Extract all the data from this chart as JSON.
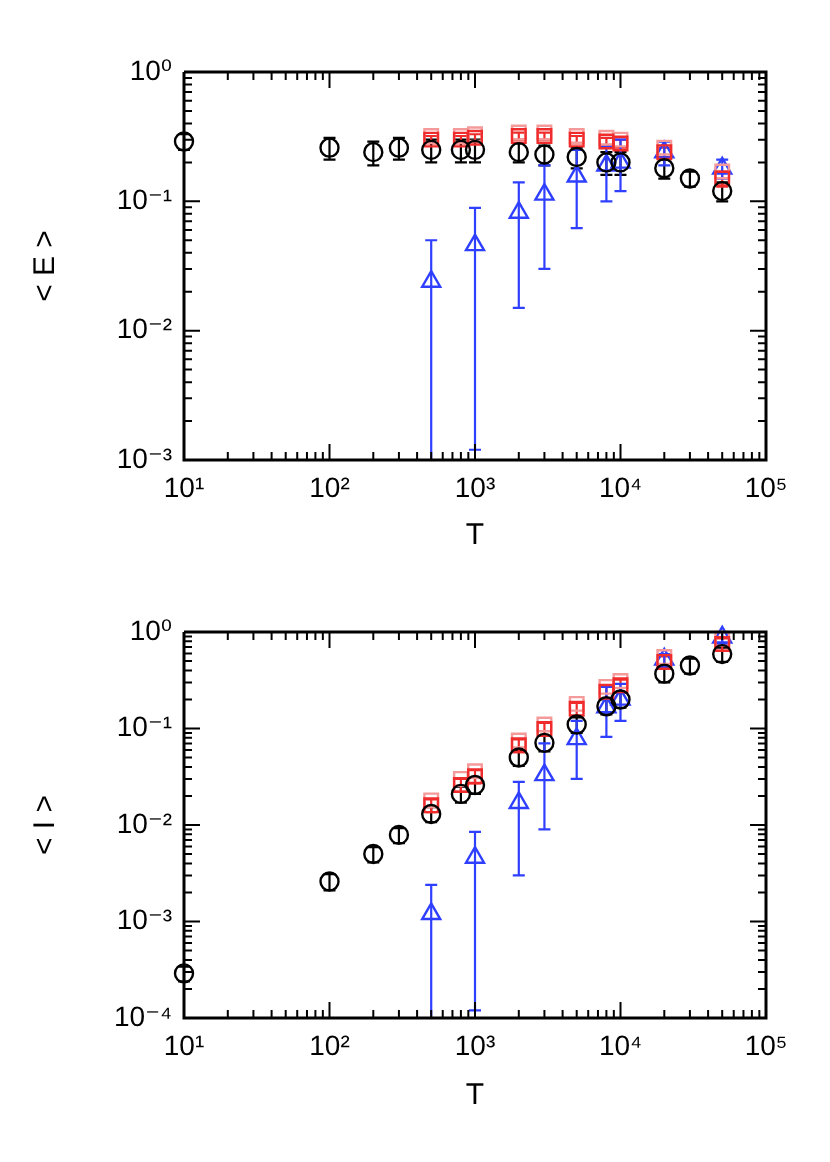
{
  "chart_data": [
    {
      "type": "scatter",
      "xlabel": "T",
      "ylabel": "< E >",
      "log": "xy",
      "grid": false,
      "legend": false,
      "xlim": [
        10,
        100000
      ],
      "ylim": [
        0.001,
        1
      ],
      "xticks": [
        {
          "value": 10,
          "label": "10¹"
        },
        {
          "value": 20,
          "label": null
        },
        {
          "value": 30,
          "label": null
        },
        {
          "value": 40,
          "label": null
        },
        {
          "value": 50,
          "label": null
        },
        {
          "value": 60,
          "label": null
        },
        {
          "value": 70,
          "label": null
        },
        {
          "value": 80,
          "label": null
        },
        {
          "value": 90,
          "label": null
        },
        {
          "value": 100,
          "label": "10²"
        },
        {
          "value": 200,
          "label": null
        },
        {
          "value": 300,
          "label": null
        },
        {
          "value": 400,
          "label": null
        },
        {
          "value": 500,
          "label": null
        },
        {
          "value": 600,
          "label": null
        },
        {
          "value": 700,
          "label": null
        },
        {
          "value": 800,
          "label": null
        },
        {
          "value": 900,
          "label": null
        },
        {
          "value": 1000,
          "label": "10³"
        },
        {
          "value": 2000,
          "label": null
        },
        {
          "value": 3000,
          "label": null
        },
        {
          "value": 4000,
          "label": null
        },
        {
          "value": 5000,
          "label": null
        },
        {
          "value": 6000,
          "label": null
        },
        {
          "value": 7000,
          "label": null
        },
        {
          "value": 8000,
          "label": null
        },
        {
          "value": 9000,
          "label": null
        },
        {
          "value": 10000,
          "label": "10⁴"
        },
        {
          "value": 20000,
          "label": null
        },
        {
          "value": 30000,
          "label": null
        },
        {
          "value": 40000,
          "label": null
        },
        {
          "value": 50000,
          "label": null
        },
        {
          "value": 60000,
          "label": null
        },
        {
          "value": 70000,
          "label": null
        },
        {
          "value": 80000,
          "label": null
        },
        {
          "value": 90000,
          "label": null
        },
        {
          "value": 100000,
          "label": "10⁵"
        }
      ],
      "yticks": [
        {
          "value": 0.001,
          "label": "10⁻³"
        },
        {
          "value": 0.002,
          "label": null
        },
        {
          "value": 0.003,
          "label": null
        },
        {
          "value": 0.004,
          "label": null
        },
        {
          "value": 0.005,
          "label": null
        },
        {
          "value": 0.006,
          "label": null
        },
        {
          "value": 0.007,
          "label": null
        },
        {
          "value": 0.008,
          "label": null
        },
        {
          "value": 0.009,
          "label": null
        },
        {
          "value": 0.01,
          "label": "10⁻²"
        },
        {
          "value": 0.02,
          "label": null
        },
        {
          "value": 0.03,
          "label": null
        },
        {
          "value": 0.04,
          "label": null
        },
        {
          "value": 0.05,
          "label": null
        },
        {
          "value": 0.06,
          "label": null
        },
        {
          "value": 0.07,
          "label": null
        },
        {
          "value": 0.08,
          "label": null
        },
        {
          "value": 0.09,
          "label": null
        },
        {
          "value": 0.1,
          "label": "10⁻¹"
        },
        {
          "value": 0.2,
          "label": null
        },
        {
          "value": 0.3,
          "label": null
        },
        {
          "value": 0.4,
          "label": null
        },
        {
          "value": 0.5,
          "label": null
        },
        {
          "value": 0.6,
          "label": null
        },
        {
          "value": 0.7,
          "label": null
        },
        {
          "value": 0.8,
          "label": null
        },
        {
          "value": 0.9,
          "label": null
        },
        {
          "value": 1,
          "label": "10⁰"
        }
      ],
      "series": [
        {
          "color": "#000000",
          "marker": "circle",
          "x": [
            10,
            100,
            200,
            300,
            500,
            800,
            1000,
            2000,
            3000,
            5000,
            8000,
            10000,
            20000,
            30000,
            50000
          ],
          "values": [
            0.29,
            0.26,
            0.24,
            0.26,
            0.25,
            0.25,
            0.25,
            0.24,
            0.23,
            0.22,
            0.2,
            0.2,
            0.18,
            0.15,
            0.12
          ],
          "errors": [
            0.04,
            0.05,
            0.05,
            0.05,
            0.05,
            0.05,
            0.05,
            0.04,
            0.04,
            0.04,
            0.04,
            0.04,
            0.03,
            0.02,
            0.02
          ]
        },
        {
          "color": "#ef2b2b",
          "marker": "square",
          "x": [
            500,
            800,
            1000,
            2000,
            3000,
            5000,
            8000,
            10000,
            20000,
            50000
          ],
          "values": [
            0.3,
            0.3,
            0.31,
            0.32,
            0.32,
            0.3,
            0.29,
            0.28,
            0.24,
            0.15
          ],
          "errors": [
            0.02,
            0.02,
            0.02,
            0.02,
            0.02,
            0.02,
            0.02,
            0.02,
            0.02,
            0.02
          ]
        },
        {
          "color": "#f59a9a",
          "marker": "square",
          "x": [
            500,
            800,
            1000,
            2000,
            3000,
            5000,
            8000,
            10000,
            20000,
            50000
          ],
          "values": [
            0.32,
            0.32,
            0.33,
            0.34,
            0.34,
            0.32,
            0.31,
            0.3,
            0.26,
            0.17
          ]
        },
        {
          "color": "#2f3fff",
          "marker": "triangle",
          "x": [
            500,
            1000,
            2000,
            3000,
            5000,
            8000,
            10000,
            20000,
            50000
          ],
          "values": [
            0.024,
            0.046,
            0.082,
            0.113,
            0.156,
            0.19,
            0.2,
            0.24,
            0.18
          ],
          "errors": [
            [
              0.001,
              0.05
            ],
            [
              0.0012,
              0.089
            ],
            [
              0.015,
              0.14
            ],
            [
              0.03,
              0.19
            ],
            [
              0.062,
              0.25
            ],
            [
              0.1,
              0.265
            ],
            [
              0.12,
              0.3
            ],
            [
              0.19,
              0.29
            ],
            [
              0.15,
              0.21
            ]
          ]
        }
      ]
    },
    {
      "type": "scatter",
      "xlabel": "T",
      "ylabel": "< I >",
      "log": "xy",
      "grid": false,
      "legend": false,
      "xlim": [
        10,
        100000
      ],
      "ylim": [
        0.0001,
        1
      ],
      "xticks": [
        {
          "value": 10,
          "label": "10¹"
        },
        {
          "value": 20,
          "label": null
        },
        {
          "value": 30,
          "label": null
        },
        {
          "value": 40,
          "label": null
        },
        {
          "value": 50,
          "label": null
        },
        {
          "value": 60,
          "label": null
        },
        {
          "value": 70,
          "label": null
        },
        {
          "value": 80,
          "label": null
        },
        {
          "value": 90,
          "label": null
        },
        {
          "value": 100,
          "label": "10²"
        },
        {
          "value": 200,
          "label": null
        },
        {
          "value": 300,
          "label": null
        },
        {
          "value": 400,
          "label": null
        },
        {
          "value": 500,
          "label": null
        },
        {
          "value": 600,
          "label": null
        },
        {
          "value": 700,
          "label": null
        },
        {
          "value": 800,
          "label": null
        },
        {
          "value": 900,
          "label": null
        },
        {
          "value": 1000,
          "label": "10³"
        },
        {
          "value": 2000,
          "label": null
        },
        {
          "value": 3000,
          "label": null
        },
        {
          "value": 4000,
          "label": null
        },
        {
          "value": 5000,
          "label": null
        },
        {
          "value": 6000,
          "label": null
        },
        {
          "value": 7000,
          "label": null
        },
        {
          "value": 8000,
          "label": null
        },
        {
          "value": 9000,
          "label": null
        },
        {
          "value": 10000,
          "label": "10⁴"
        },
        {
          "value": 20000,
          "label": null
        },
        {
          "value": 30000,
          "label": null
        },
        {
          "value": 40000,
          "label": null
        },
        {
          "value": 50000,
          "label": null
        },
        {
          "value": 60000,
          "label": null
        },
        {
          "value": 70000,
          "label": null
        },
        {
          "value": 80000,
          "label": null
        },
        {
          "value": 90000,
          "label": null
        },
        {
          "value": 100000,
          "label": "10⁵"
        }
      ],
      "yticks": [
        {
          "value": 0.0001,
          "label": "10⁻⁴"
        },
        {
          "value": 0.0002,
          "label": null
        },
        {
          "value": 0.0003,
          "label": null
        },
        {
          "value": 0.0004,
          "label": null
        },
        {
          "value": 0.0005,
          "label": null
        },
        {
          "value": 0.0006,
          "label": null
        },
        {
          "value": 0.0007,
          "label": null
        },
        {
          "value": 0.0008,
          "label": null
        },
        {
          "value": 0.0009,
          "label": null
        },
        {
          "value": 0.001,
          "label": "10⁻³"
        },
        {
          "value": 0.002,
          "label": null
        },
        {
          "value": 0.003,
          "label": null
        },
        {
          "value": 0.004,
          "label": null
        },
        {
          "value": 0.005,
          "label": null
        },
        {
          "value": 0.006,
          "label": null
        },
        {
          "value": 0.007,
          "label": null
        },
        {
          "value": 0.008,
          "label": null
        },
        {
          "value": 0.009,
          "label": null
        },
        {
          "value": 0.01,
          "label": "10⁻²"
        },
        {
          "value": 0.02,
          "label": null
        },
        {
          "value": 0.03,
          "label": null
        },
        {
          "value": 0.04,
          "label": null
        },
        {
          "value": 0.05,
          "label": null
        },
        {
          "value": 0.06,
          "label": null
        },
        {
          "value": 0.07,
          "label": null
        },
        {
          "value": 0.08,
          "label": null
        },
        {
          "value": 0.09,
          "label": null
        },
        {
          "value": 0.1,
          "label": "10⁻¹"
        },
        {
          "value": 0.2,
          "label": null
        },
        {
          "value": 0.3,
          "label": null
        },
        {
          "value": 0.4,
          "label": null
        },
        {
          "value": 0.5,
          "label": null
        },
        {
          "value": 0.6,
          "label": null
        },
        {
          "value": 0.7,
          "label": null
        },
        {
          "value": 0.8,
          "label": null
        },
        {
          "value": 0.9,
          "label": null
        },
        {
          "value": 1,
          "label": "10⁰"
        }
      ],
      "series": [
        {
          "color": "#000000",
          "marker": "circle",
          "x": [
            10,
            100,
            200,
            300,
            500,
            800,
            1000,
            2000,
            3000,
            5000,
            8000,
            10000,
            20000,
            30000,
            50000
          ],
          "values": [
            0.00029,
            0.0026,
            0.005,
            0.0079,
            0.013,
            0.021,
            0.026,
            0.05,
            0.071,
            0.11,
            0.17,
            0.2,
            0.37,
            0.45,
            0.59
          ],
          "errors": [
            5e-05,
            0.0005,
            0.0009,
            0.0014,
            0.0023,
            0.004,
            0.005,
            0.009,
            0.013,
            0.02,
            0.03,
            0.036,
            0.07,
            0.08,
            0.1
          ]
        },
        {
          "color": "#ef2b2b",
          "marker": "square",
          "x": [
            500,
            800,
            1000,
            2000,
            3000,
            5000,
            8000,
            10000,
            20000,
            50000
          ],
          "values": [
            0.016,
            0.026,
            0.032,
            0.067,
            0.099,
            0.16,
            0.24,
            0.28,
            0.49,
            0.75
          ],
          "errors": [
            0.0024,
            0.004,
            0.005,
            0.01,
            0.015,
            0.024,
            0.036,
            0.04,
            0.07,
            0.11
          ]
        },
        {
          "color": "#f59a9a",
          "marker": "square",
          "x": [
            500,
            800,
            1000,
            2000,
            3000,
            5000,
            8000,
            10000,
            20000,
            50000
          ],
          "values": [
            0.018,
            0.03,
            0.036,
            0.075,
            0.11,
            0.18,
            0.27,
            0.31,
            0.55,
            0.85
          ]
        },
        {
          "color": "#2f3fff",
          "marker": "triangle",
          "x": [
            500,
            1000,
            2000,
            3000,
            5000,
            8000,
            10000,
            20000,
            50000
          ],
          "values": [
            0.0012,
            0.0046,
            0.017,
            0.033,
            0.078,
            0.167,
            0.2,
            0.52,
            0.88
          ],
          "errors": [
            [
              0.0001,
              0.0024
            ],
            [
              0.00012,
              0.0085
            ],
            [
              0.003,
              0.028
            ],
            [
              0.009,
              0.07
            ],
            [
              0.03,
              0.12
            ],
            [
              0.082,
              0.27
            ],
            [
              0.12,
              0.29
            ],
            [
              0.43,
              0.59
            ],
            [
              0.75,
              1
            ]
          ]
        }
      ]
    }
  ]
}
